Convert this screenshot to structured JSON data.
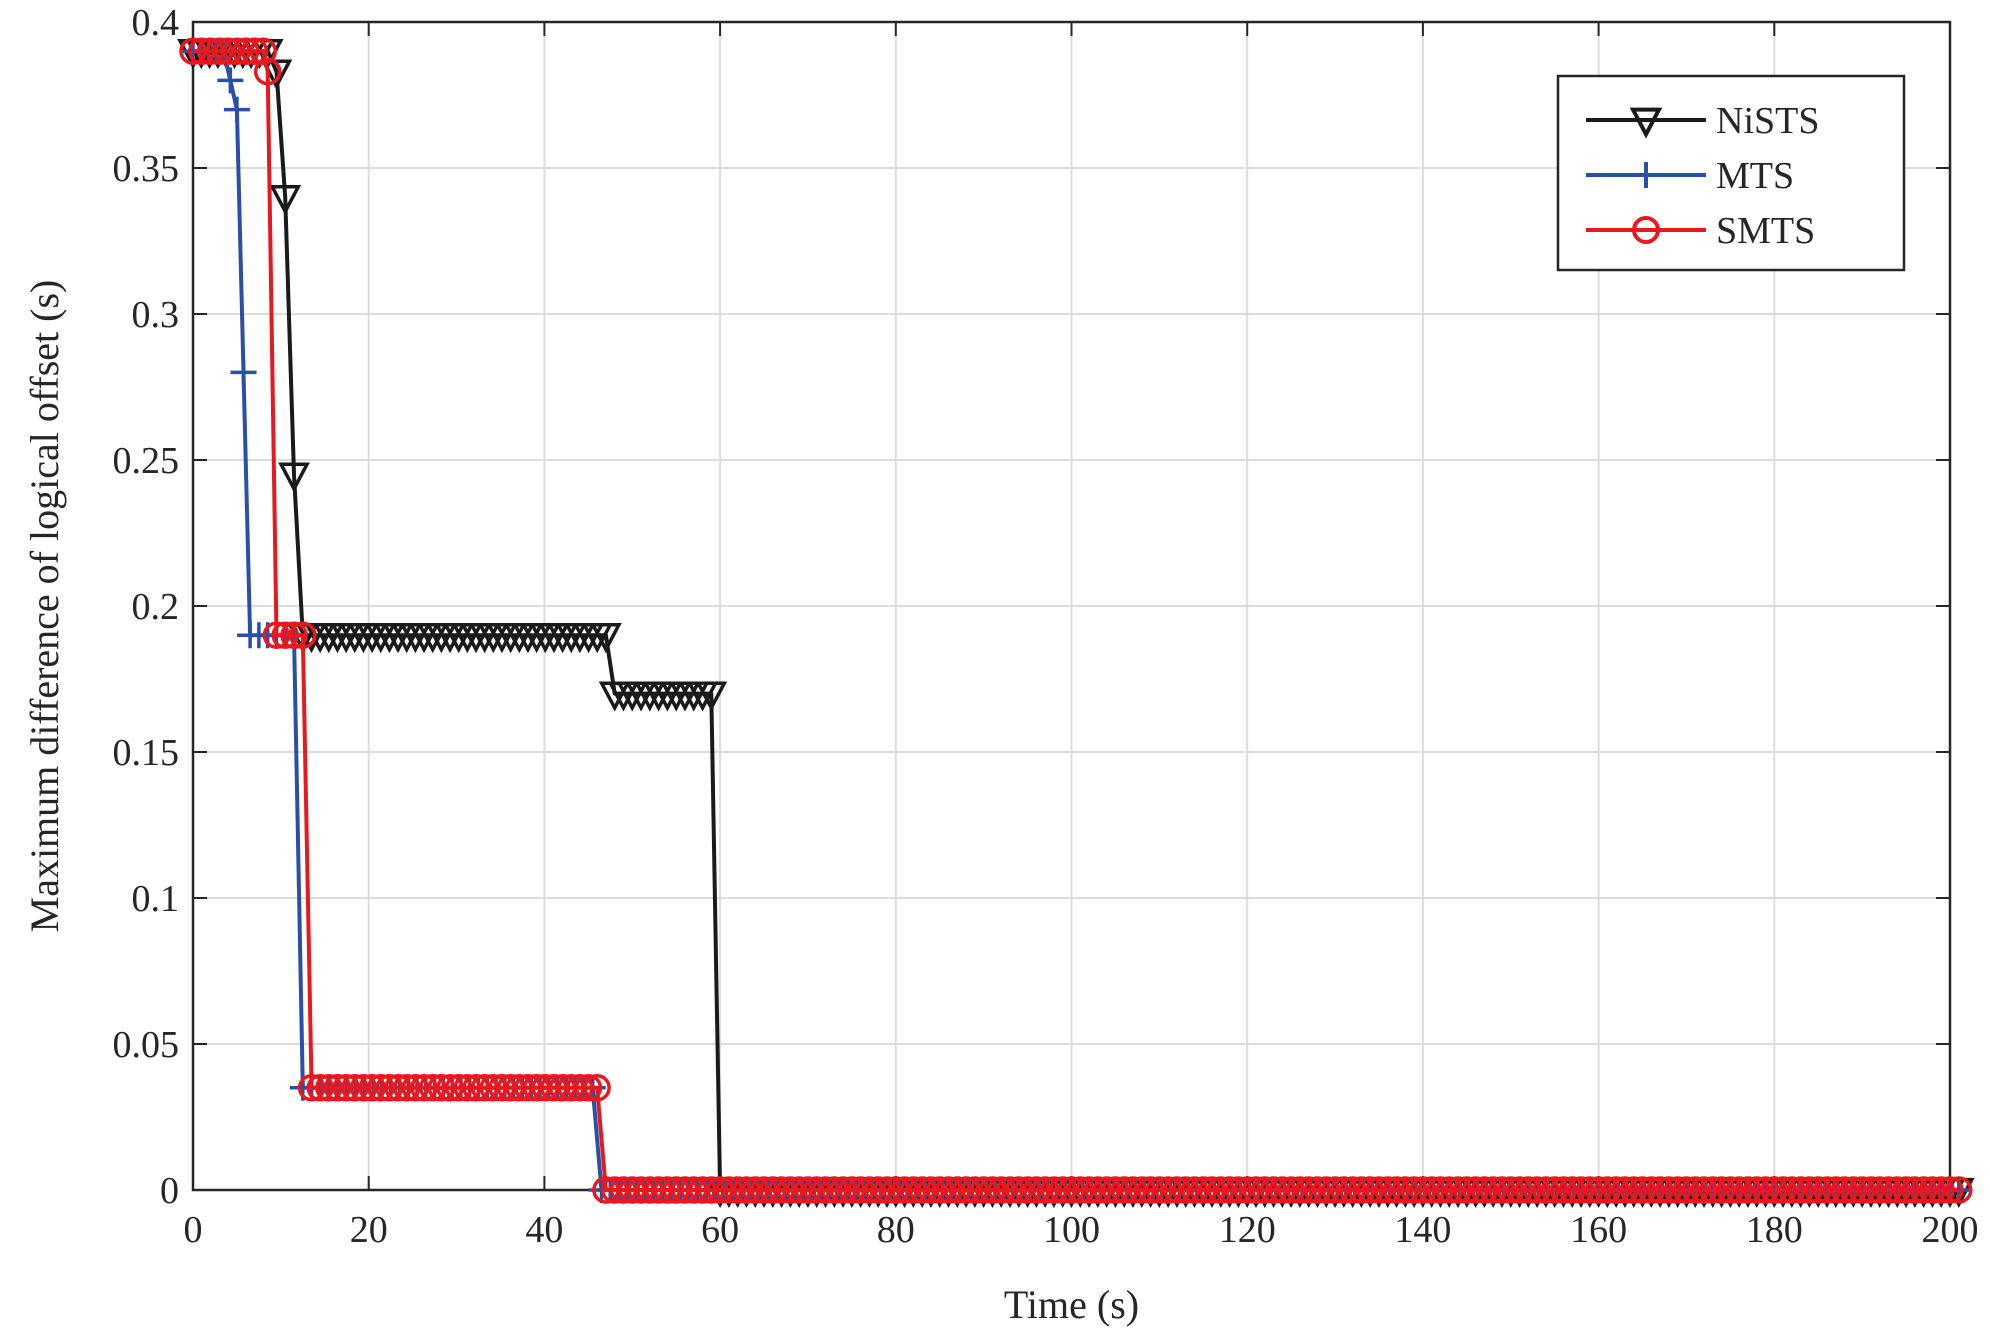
{
  "chart_data": {
    "type": "line",
    "xlabel": "Time (s)",
    "ylabel": "Maximum difference of logical offset (s)",
    "xlim": [
      0,
      200
    ],
    "ylim": [
      0,
      0.4
    ],
    "xticks": [
      "0",
      "20",
      "40",
      "60",
      "80",
      "100",
      "120",
      "140",
      "160",
      "180",
      "200"
    ],
    "yticks": [
      "0",
      "0.05",
      "0.1",
      "0.15",
      "0.2",
      "0.25",
      "0.3",
      "0.35",
      "0.4"
    ],
    "grid": true,
    "legend_position": "top-right",
    "series": [
      {
        "name": "NiSTS",
        "color": "#1a1a1a",
        "marker": "triangle-down",
        "x": [
          0,
          8.5,
          9.5,
          10.5,
          11.5,
          12.5,
          47,
          48,
          49,
          59,
          60,
          201
        ],
        "y": [
          0.39,
          0.39,
          0.383,
          0.34,
          0.245,
          0.19,
          0.19,
          0.17,
          0.17,
          0.17,
          0,
          0
        ]
      },
      {
        "name": "MTS",
        "color": "#2a4fa8",
        "marker": "plus",
        "x": [
          0,
          3.5,
          5,
          6.5,
          11.5,
          12.5,
          45.5,
          46.5,
          201
        ],
        "y": [
          0.39,
          0.39,
          0.37,
          0.19,
          0.19,
          0.035,
          0.035,
          0,
          0
        ]
      },
      {
        "name": "SMTS",
        "color": "#e8191e",
        "marker": "circle",
        "x": [
          0,
          8,
          8.5,
          9.5,
          12.5,
          13.5,
          46,
          47,
          201
        ],
        "y": [
          0.39,
          0.39,
          0.383,
          0.19,
          0.19,
          0.035,
          0.035,
          0,
          0
        ]
      }
    ]
  }
}
